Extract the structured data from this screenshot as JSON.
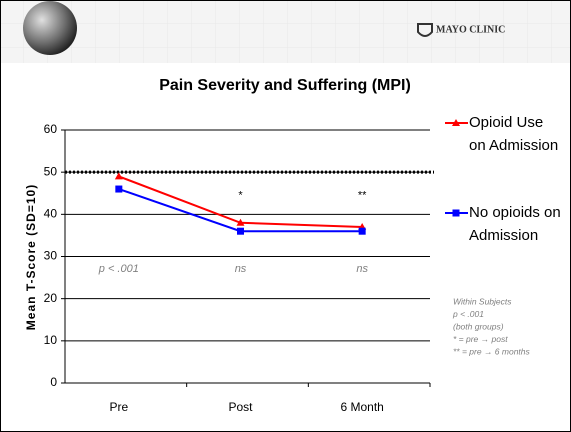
{
  "logo": "MAYO CLINIC",
  "chart_data": {
    "type": "line",
    "title": "Pain Severity and Suffering (MPI)",
    "y_label": "Mean T-Score (SD=10)",
    "categories": [
      "Pre",
      "Post",
      "6 Month"
    ],
    "series": [
      {
        "name": "Opioid Use on Admission",
        "color": "#ff0000",
        "marker": "triangle",
        "values": [
          49,
          38,
          37
        ]
      },
      {
        "name": "No opioids on Admission",
        "color": "#0000ff",
        "marker": "square",
        "values": [
          46,
          36,
          36
        ]
      }
    ],
    "reference_line": 50,
    "significance": [
      "p < .001",
      "ns",
      "ns"
    ],
    "markers": [
      null,
      "*",
      "**"
    ],
    "notes": [
      "Within Subjects",
      "p < .001",
      "(both groups)",
      "* = pre → post",
      "** = pre → 6 months"
    ],
    "ylim": [
      0,
      60
    ],
    "yticks": [
      0,
      10,
      20,
      30,
      40,
      50,
      60
    ],
    "grid": true
  }
}
